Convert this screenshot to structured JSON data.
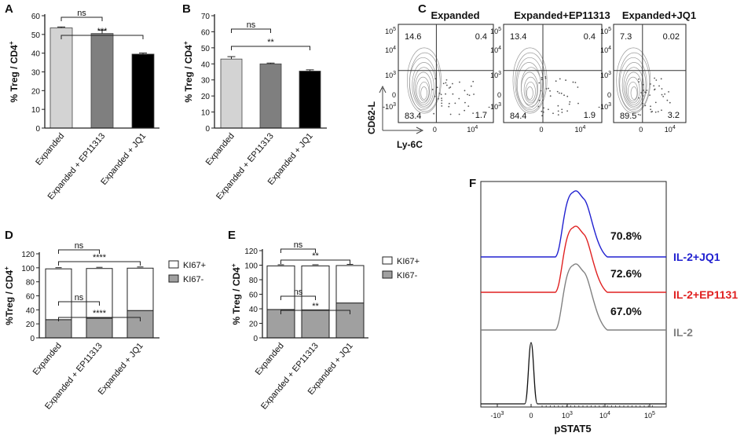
{
  "chart_data": [
    {
      "panel": "A",
      "type": "bar",
      "ylabel": "% Treg / CD4+",
      "ylim": [
        0,
        60
      ],
      "yticks": [
        0,
        10,
        20,
        30,
        40,
        50,
        60
      ],
      "categories": [
        "Expanded",
        "Expanded + EP11313",
        "Expanded + JQ1"
      ],
      "values": [
        53.5,
        50.5,
        39.5
      ],
      "errors": [
        0.5,
        1.8,
        0.6
      ],
      "colors": [
        "#d3d3d3",
        "#7f7f7f",
        "#000000"
      ],
      "significance": [
        {
          "from": 0,
          "to": 1,
          "label": "ns"
        },
        {
          "from": 0,
          "to": 2,
          "label": "***"
        }
      ]
    },
    {
      "panel": "B",
      "type": "bar",
      "ylabel": "% Treg / CD4+",
      "ylim": [
        0,
        70
      ],
      "yticks": [
        0,
        10,
        20,
        30,
        40,
        50,
        60,
        70
      ],
      "categories": [
        "Expanded",
        "Expanded + EP11313",
        "Expanded + JQ1"
      ],
      "values": [
        43,
        40,
        35.5
      ],
      "errors": [
        1.5,
        0.5,
        0.8
      ],
      "colors": [
        "#d3d3d3",
        "#7f7f7f",
        "#000000"
      ],
      "significance": [
        {
          "from": 0,
          "to": 1,
          "label": "ns"
        },
        {
          "from": 0,
          "to": 2,
          "label": "**"
        }
      ]
    },
    {
      "panel": "C",
      "type": "scatter",
      "xlabel": "Ly-6C",
      "ylabel": "CD62-L",
      "x_ticks": [
        "0",
        "10^4"
      ],
      "y_ticks": [
        "10^5",
        "10^4",
        "10^3",
        "0",
        "-10^3"
      ],
      "plots": [
        {
          "title": "Expanded",
          "quadrants": {
            "upper_left": "14.6",
            "upper_right": "0.4",
            "lower_left": "83.4",
            "lower_right": "1.7"
          }
        },
        {
          "title": "Expanded+EP11313",
          "quadrants": {
            "upper_left": "13.4",
            "upper_right": "0.4",
            "lower_left": "84.4",
            "lower_right": "1.9"
          }
        },
        {
          "title": "Expanded+JQ1",
          "quadrants": {
            "upper_left": "7.3",
            "upper_right": "0.02",
            "lower_left": "89.5",
            "lower_right": "3.2"
          }
        }
      ]
    },
    {
      "panel": "D",
      "type": "bar",
      "stacked": true,
      "ylabel": "%Treg / CD4+",
      "ylim": [
        0,
        120
      ],
      "yticks": [
        0,
        20,
        40,
        60,
        80,
        100,
        120
      ],
      "categories": [
        "Expanded",
        "Expanded + EP11313",
        "Expanded + JQ1"
      ],
      "series": [
        {
          "name": "KI67-",
          "color": "#a0a0a0",
          "values": [
            26,
            28,
            39
          ]
        },
        {
          "name": "KI67+",
          "color": "#ffffff",
          "values": [
            72.5,
            71,
            60.5
          ]
        }
      ],
      "legend": [
        "KI67+",
        "KI67-"
      ],
      "significance": [
        {
          "from": 0,
          "to": 1,
          "label": "ns",
          "level": "top"
        },
        {
          "from": 0,
          "to": 2,
          "label": "****",
          "level": "top"
        },
        {
          "from": 0,
          "to": 1,
          "label": "ns",
          "level": "bottom"
        },
        {
          "from": 0,
          "to": 2,
          "label": "****",
          "level": "bottom"
        }
      ]
    },
    {
      "panel": "E",
      "type": "bar",
      "stacked": true,
      "ylabel": "% Treg / CD4+",
      "ylim": [
        0,
        120
      ],
      "yticks": [
        0,
        20,
        40,
        60,
        80,
        100,
        120
      ],
      "categories": [
        "Expanded",
        "Expanded + EP11313",
        "Expanded + JQ1"
      ],
      "series": [
        {
          "name": "KI67-",
          "color": "#a0a0a0",
          "values": [
            39,
            38.5,
            48
          ]
        },
        {
          "name": "KI67+",
          "color": "#ffffff",
          "values": [
            60,
            60.5,
            51.5
          ]
        }
      ],
      "legend": [
        "KI67+",
        "KI67-"
      ],
      "significance": [
        {
          "from": 0,
          "to": 1,
          "label": "ns",
          "level": "top"
        },
        {
          "from": 0,
          "to": 2,
          "label": "**",
          "level": "top"
        },
        {
          "from": 0,
          "to": 1,
          "label": "ns",
          "level": "bottom"
        },
        {
          "from": 0,
          "to": 2,
          "label": "**",
          "level": "bottom"
        }
      ]
    },
    {
      "panel": "F",
      "type": "area",
      "subtype": "histogram",
      "xlabel": "pSTAT5",
      "x_ticks": [
        "-10^3",
        "0",
        "10^3",
        "10^4",
        "10^5"
      ],
      "series": [
        {
          "name": "IL-2+JQ1",
          "color": "#2020d0",
          "percent": "70.8%"
        },
        {
          "name": "IL-2+EP1131",
          "color": "#e02020",
          "percent": "72.6%"
        },
        {
          "name": "IL-2",
          "color": "#808080",
          "percent": "67.0%"
        }
      ]
    }
  ]
}
